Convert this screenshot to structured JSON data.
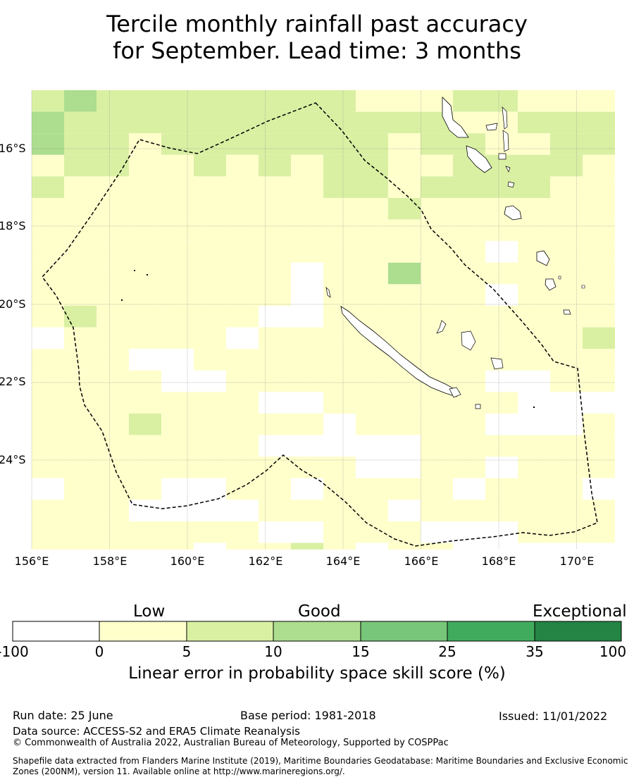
{
  "title": {
    "line1": "Tercile monthly rainfall past accuracy",
    "line2": "for September. Lead time: 3 months"
  },
  "map": {
    "lon_labels": [
      "156°E",
      "158°E",
      "160°E",
      "162°E",
      "164°E",
      "166°E",
      "168°E",
      "170°E"
    ],
    "lat_labels": [
      "16°S",
      "18°S",
      "20°S",
      "22°S",
      "24°S"
    ],
    "colors": {
      "c0": "#ffffff",
      "c1": "#ffffcc",
      "c2": "#d9f0a3",
      "c3": "#addd8e",
      "c4": "#78c679",
      "c5": "#41ab5d",
      "c6": "#238443",
      "boundary": "#000000",
      "grid": "#888888"
    }
  },
  "colorbar": {
    "categories": [
      "Low",
      "Good",
      "Exceptional"
    ],
    "ticks": [
      "-100",
      "0",
      "5",
      "10",
      "15",
      "25",
      "35",
      "100"
    ],
    "label": "Linear error in probability space skill score (%)"
  },
  "footer": {
    "run_date": "Run date: 25 June",
    "base_period": "Base period: 1981-2018",
    "issued": "Issued: 11/01/2022",
    "data_source": "Data source: ACCESS-S2 and ERA5 Climate Reanalysis",
    "copyright": "© Commonwealth of Australia 2022, Australian Bureau of Meteorology, Supported by COSPPac",
    "shapefile_line1": "Shapefile data extracted from Flanders Marine Institute (2019), Maritime Boundaries Geodatabase: Maritime Boundaries and Exclusive Economic",
    "shapefile_line2": "Zones (200NM), version 11. Available online at http://www.marineregions.org/."
  }
}
